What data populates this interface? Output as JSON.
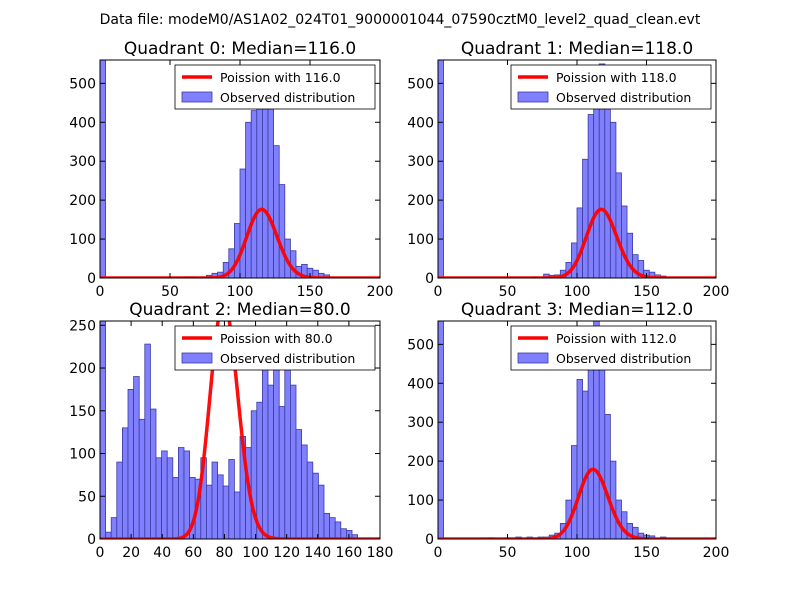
{
  "figure": {
    "suptitle": "Data file: modeM0/AS1A02_024T01_9000001044_07590cztM0_level2_quad_clean.evt"
  },
  "colors": {
    "fit_line": "#ff0000",
    "bar_fill": "#8080ff",
    "bar_edge": "#3a3aa0"
  },
  "chart_data": [
    {
      "type": "bar",
      "title": "Quadrant 0: Median=116.0",
      "xlabel": "",
      "ylabel": "",
      "xlim": [
        0,
        200
      ],
      "ylim": [
        0,
        560
      ],
      "xticks": [
        "0",
        "50",
        "100",
        "150",
        "200"
      ],
      "yticks": [
        "0",
        "100",
        "200",
        "300",
        "400",
        "500"
      ],
      "xtick_values": [
        0,
        50,
        100,
        150,
        200
      ],
      "ytick_values": [
        0,
        100,
        200,
        300,
        400,
        500
      ],
      "legend_placement": "top-right",
      "legend": [
        "Poission with 116.0",
        "Observed distribution"
      ],
      "fit": {
        "name": "Poission with 116.0",
        "lambda": 116.0,
        "scale": 4760
      },
      "bin_width": 4,
      "bins": [
        {
          "x": 0,
          "h": 560
        },
        {
          "x": 60,
          "h": 3
        },
        {
          "x": 64,
          "h": 3
        },
        {
          "x": 72,
          "h": 3
        },
        {
          "x": 76,
          "h": 7
        },
        {
          "x": 80,
          "h": 12
        },
        {
          "x": 84,
          "h": 15
        },
        {
          "x": 88,
          "h": 40
        },
        {
          "x": 92,
          "h": 75
        },
        {
          "x": 96,
          "h": 140
        },
        {
          "x": 100,
          "h": 280
        },
        {
          "x": 104,
          "h": 400
        },
        {
          "x": 108,
          "h": 430
        },
        {
          "x": 112,
          "h": 520
        },
        {
          "x": 116,
          "h": 525
        },
        {
          "x": 120,
          "h": 450
        },
        {
          "x": 124,
          "h": 340
        },
        {
          "x": 128,
          "h": 240
        },
        {
          "x": 132,
          "h": 100
        },
        {
          "x": 136,
          "h": 70
        },
        {
          "x": 140,
          "h": 30
        },
        {
          "x": 144,
          "h": 35
        },
        {
          "x": 148,
          "h": 25
        },
        {
          "x": 152,
          "h": 20
        },
        {
          "x": 156,
          "h": 12
        },
        {
          "x": 160,
          "h": 8
        }
      ]
    },
    {
      "type": "bar",
      "title": "Quadrant 1: Median=118.0",
      "xlabel": "",
      "ylabel": "",
      "xlim": [
        0,
        200
      ],
      "ylim": [
        0,
        560
      ],
      "xticks": [
        "0",
        "50",
        "100",
        "150",
        "200"
      ],
      "yticks": [
        "0",
        "100",
        "200",
        "300",
        "400",
        "500"
      ],
      "xtick_values": [
        0,
        50,
        100,
        150,
        200
      ],
      "ytick_values": [
        0,
        100,
        200,
        300,
        400,
        500
      ],
      "legend_placement": "top-right",
      "legend": [
        "Poission with 118.0",
        "Observed distribution"
      ],
      "fit": {
        "name": "Poission with 118.0",
        "lambda": 118.0,
        "scale": 4800
      },
      "bin_width": 4,
      "bins": [
        {
          "x": 0,
          "h": 560
        },
        {
          "x": 68,
          "h": 3
        },
        {
          "x": 76,
          "h": 10
        },
        {
          "x": 80,
          "h": 7
        },
        {
          "x": 84,
          "h": 8
        },
        {
          "x": 88,
          "h": 20
        },
        {
          "x": 92,
          "h": 40
        },
        {
          "x": 96,
          "h": 90
        },
        {
          "x": 100,
          "h": 180
        },
        {
          "x": 104,
          "h": 305
        },
        {
          "x": 108,
          "h": 420
        },
        {
          "x": 112,
          "h": 495
        },
        {
          "x": 116,
          "h": 550
        },
        {
          "x": 120,
          "h": 460
        },
        {
          "x": 124,
          "h": 400
        },
        {
          "x": 128,
          "h": 270
        },
        {
          "x": 132,
          "h": 185
        },
        {
          "x": 136,
          "h": 115
        },
        {
          "x": 140,
          "h": 60
        },
        {
          "x": 144,
          "h": 45
        },
        {
          "x": 148,
          "h": 20
        },
        {
          "x": 152,
          "h": 15
        },
        {
          "x": 156,
          "h": 8
        },
        {
          "x": 160,
          "h": 5
        }
      ]
    },
    {
      "type": "bar",
      "title": "Quadrant 2: Median=80.0",
      "xlabel": "",
      "ylabel": "",
      "xlim": [
        0,
        180
      ],
      "ylim": [
        0,
        255
      ],
      "xticks": [
        "0",
        "20",
        "40",
        "60",
        "80",
        "100",
        "120",
        "140",
        "160",
        "180"
      ],
      "yticks": [
        "0",
        "50",
        "100",
        "150",
        "200",
        "250"
      ],
      "xtick_values": [
        0,
        20,
        40,
        60,
        80,
        100,
        120,
        140,
        160,
        180
      ],
      "ytick_values": [
        0,
        50,
        100,
        150,
        200,
        250
      ],
      "legend_placement": "top-right",
      "legend": [
        "Poission with 80.0",
        "Observed distribution"
      ],
      "fit": {
        "name": "Poission with 80.0",
        "lambda": 80.0,
        "scale": 6200
      },
      "bin_width": 3.6,
      "bins": [
        {
          "x": 0,
          "h": 255
        },
        {
          "x": 3.6,
          "h": 8
        },
        {
          "x": 7.2,
          "h": 25
        },
        {
          "x": 10.8,
          "h": 90
        },
        {
          "x": 14.4,
          "h": 130
        },
        {
          "x": 18,
          "h": 175
        },
        {
          "x": 21.6,
          "h": 190
        },
        {
          "x": 25.2,
          "h": 140
        },
        {
          "x": 28.8,
          "h": 228
        },
        {
          "x": 32.4,
          "h": 152
        },
        {
          "x": 36,
          "h": 95
        },
        {
          "x": 39.6,
          "h": 103
        },
        {
          "x": 43.2,
          "h": 95
        },
        {
          "x": 46.8,
          "h": 72
        },
        {
          "x": 50.4,
          "h": 107
        },
        {
          "x": 54,
          "h": 103
        },
        {
          "x": 57.6,
          "h": 72
        },
        {
          "x": 61.2,
          "h": 70
        },
        {
          "x": 64.8,
          "h": 95
        },
        {
          "x": 68.4,
          "h": 63
        },
        {
          "x": 72,
          "h": 90
        },
        {
          "x": 75.6,
          "h": 75
        },
        {
          "x": 79.2,
          "h": 62
        },
        {
          "x": 82.8,
          "h": 93
        },
        {
          "x": 86.4,
          "h": 55
        },
        {
          "x": 90,
          "h": 120
        },
        {
          "x": 93.6,
          "h": 107
        },
        {
          "x": 97.2,
          "h": 150
        },
        {
          "x": 100.8,
          "h": 160
        },
        {
          "x": 104.4,
          "h": 240
        },
        {
          "x": 108,
          "h": 180
        },
        {
          "x": 111.6,
          "h": 210
        },
        {
          "x": 115.2,
          "h": 155
        },
        {
          "x": 118.8,
          "h": 240
        },
        {
          "x": 122.4,
          "h": 180
        },
        {
          "x": 126,
          "h": 128
        },
        {
          "x": 129.6,
          "h": 110
        },
        {
          "x": 133.2,
          "h": 90
        },
        {
          "x": 136.8,
          "h": 77
        },
        {
          "x": 140.4,
          "h": 63
        },
        {
          "x": 144,
          "h": 30
        },
        {
          "x": 147.6,
          "h": 25
        },
        {
          "x": 151.2,
          "h": 20
        },
        {
          "x": 154.8,
          "h": 12
        },
        {
          "x": 158.4,
          "h": 10
        },
        {
          "x": 162,
          "h": 5
        }
      ]
    },
    {
      "type": "bar",
      "title": "Quadrant 3: Median=112.0",
      "xlabel": "",
      "ylabel": "",
      "xlim": [
        0,
        200
      ],
      "ylim": [
        0,
        560
      ],
      "xticks": [
        "0",
        "50",
        "100",
        "150",
        "200"
      ],
      "yticks": [
        "0",
        "100",
        "200",
        "300",
        "400",
        "500"
      ],
      "xtick_values": [
        0,
        50,
        100,
        150,
        200
      ],
      "ytick_values": [
        0,
        100,
        200,
        300,
        400,
        500
      ],
      "legend_placement": "top-right",
      "legend": [
        "Poission with 112.0",
        "Observed distribution"
      ],
      "fit": {
        "name": "Poission with 112.0",
        "lambda": 112.0,
        "scale": 4750
      },
      "bin_width": 4,
      "bins": [
        {
          "x": 0,
          "h": 560
        },
        {
          "x": 36,
          "h": 3
        },
        {
          "x": 48,
          "h": 3
        },
        {
          "x": 56,
          "h": 5
        },
        {
          "x": 64,
          "h": 5
        },
        {
          "x": 68,
          "h": 3
        },
        {
          "x": 72,
          "h": 5
        },
        {
          "x": 76,
          "h": 5
        },
        {
          "x": 80,
          "h": 10
        },
        {
          "x": 84,
          "h": 15
        },
        {
          "x": 88,
          "h": 40
        },
        {
          "x": 92,
          "h": 100
        },
        {
          "x": 96,
          "h": 240
        },
        {
          "x": 100,
          "h": 410
        },
        {
          "x": 104,
          "h": 380
        },
        {
          "x": 108,
          "h": 520
        },
        {
          "x": 112,
          "h": 560
        },
        {
          "x": 116,
          "h": 445
        },
        {
          "x": 120,
          "h": 320
        },
        {
          "x": 124,
          "h": 200
        },
        {
          "x": 128,
          "h": 100
        },
        {
          "x": 132,
          "h": 70
        },
        {
          "x": 136,
          "h": 40
        },
        {
          "x": 140,
          "h": 30
        },
        {
          "x": 144,
          "h": 15
        },
        {
          "x": 148,
          "h": 10
        },
        {
          "x": 152,
          "h": 8
        },
        {
          "x": 160,
          "h": 5
        }
      ]
    }
  ]
}
